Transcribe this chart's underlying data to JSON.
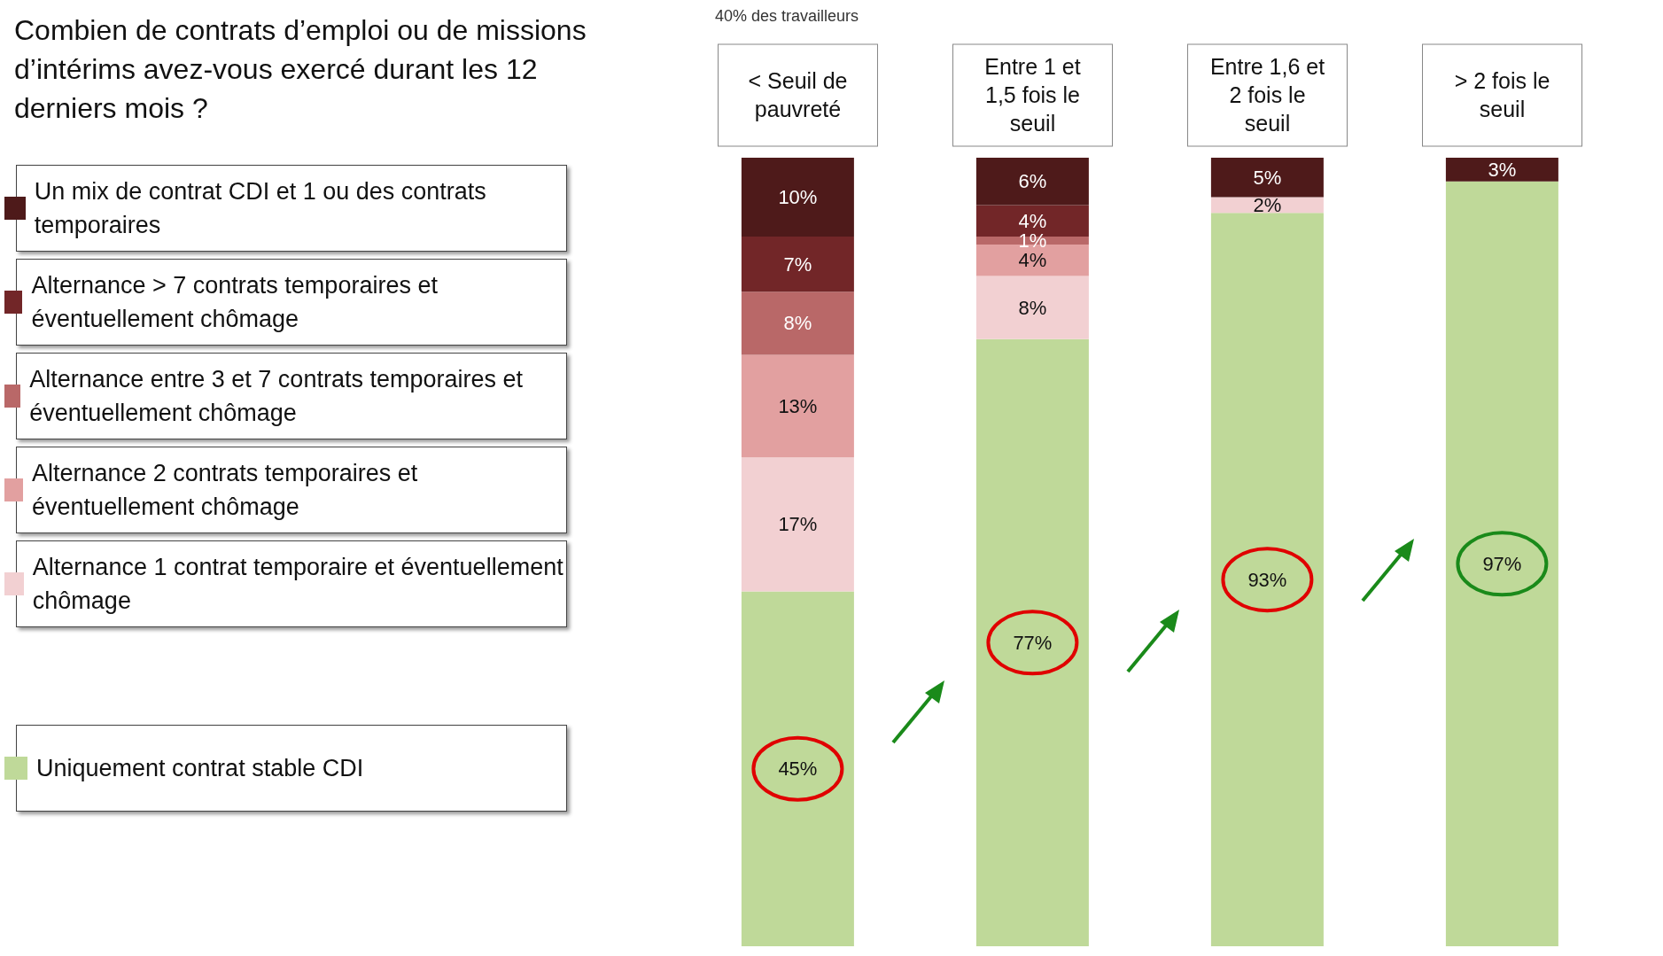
{
  "chart_data": {
    "type": "bar",
    "stacked": true,
    "title": "Combien de contrats d’emploi ou de missions d’intérims avez-vous exercé durant les 12 derniers mois ?",
    "annotations": [
      "40% des travailleurs"
    ],
    "categories": [
      "< Seuil de pauvreté",
      "Entre 1 et 1,5 fois le seuil",
      "Entre 1,6 et 2 fois le seuil",
      "> 2 fois le seuil"
    ],
    "legend": "left",
    "series": [
      {
        "name": "Uniquement contrat stable CDI",
        "color": "#bfd999",
        "values": [
          45,
          77,
          93,
          97
        ],
        "value_labels": [
          "45%",
          "77%",
          "93%",
          "97%"
        ]
      },
      {
        "name": "Alternance 1 contrat temporaire et éventuellement chômage",
        "color": "#f2d0d2",
        "values": [
          17,
          8,
          2,
          null
        ],
        "value_labels": [
          "17%",
          "8%",
          "2%",
          null
        ]
      },
      {
        "name": "Alternance 2 contrats temporaires et éventuellement chômage",
        "color": "#e2a0a0",
        "values": [
          13,
          4,
          null,
          null
        ],
        "value_labels": [
          "13%",
          "4%",
          null,
          null
        ]
      },
      {
        "name": "Alternance entre 3 et 7 contrats temporaires et éventuellement chômage",
        "color": "#b96868",
        "values": [
          8,
          1,
          null,
          null
        ],
        "value_labels": [
          "8%",
          "1%",
          null,
          null
        ]
      },
      {
        "name": "Alternance > 7 contrats temporaires et éventuellement chômage",
        "color": "#722628",
        "values": [
          7,
          4,
          null,
          null
        ],
        "value_labels": [
          "7%",
          "4%",
          null,
          null
        ]
      },
      {
        "name": "Un mix de contrat CDI et 1 ou des contrats temporaires",
        "color": "#4e1a1a",
        "values": [
          10,
          6,
          5,
          3
        ],
        "value_labels": [
          "10%",
          "6%",
          "5%",
          "3%"
        ]
      }
    ]
  }
}
